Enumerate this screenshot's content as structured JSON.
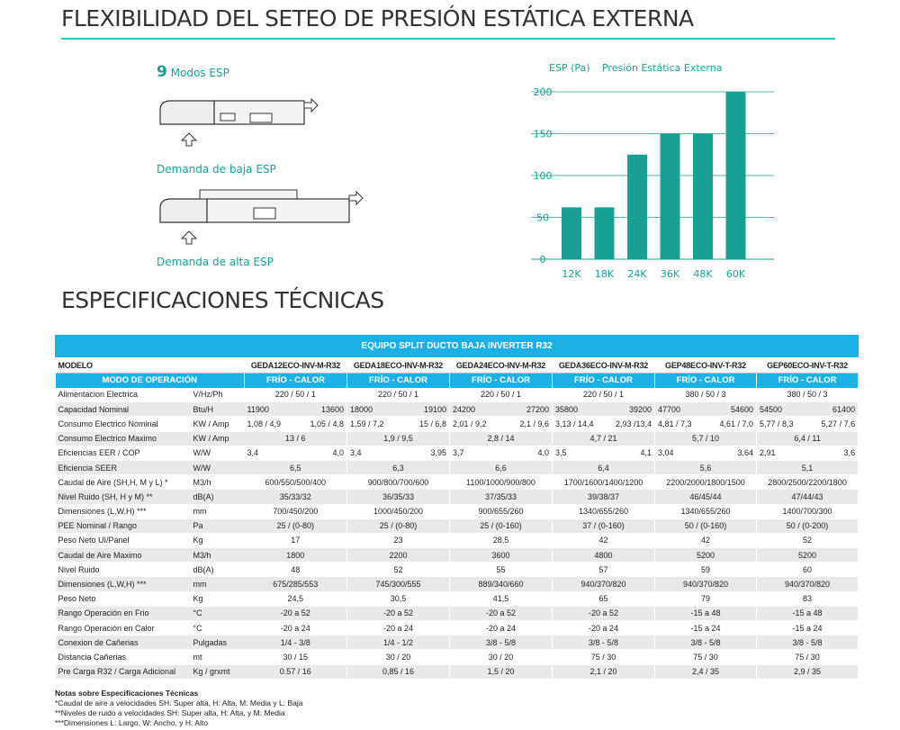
{
  "flex_title": "FLEXIBILIDAD DEL SETEO DE PRESIÓN ESTÁTICA EXTERNA",
  "modes": {
    "number": "9",
    "label": "Modos ESP"
  },
  "low_caption": "Demanda de baja ESP",
  "high_caption": "Demanda de alta ESP",
  "colors": {
    "teal": "#17a195",
    "blue": "#1bb0e6",
    "rule": "#2ec4d4",
    "row_alt": "#e9e9e9"
  },
  "chart_data": {
    "type": "bar",
    "ylabel": "ESP (Pa)",
    "title": "Presión Estática Externa",
    "categories": [
      "12K",
      "18K",
      "24K",
      "36K",
      "48K",
      "60K"
    ],
    "values": [
      62,
      62,
      125,
      150,
      150,
      200
    ],
    "yticks": [
      0,
      50,
      100,
      150,
      200
    ],
    "ylim": [
      0,
      200
    ],
    "grid": true
  },
  "spec_title": "ESPECIFICACIONES TÉCNICAS",
  "table": {
    "banner": "EQUIPO SPLIT DUCTO BAJA INVERTER R32",
    "model_label": "MODELO",
    "models": [
      "GEDA12ECO-INV-M-R32",
      "GEDA18ECO-INV-M-R32",
      "GEDA24ECO-INV-M-R32",
      "GEDA36ECO-INV-M-R32",
      "GEP48ECO-INV-T-R32",
      "GEP60ECO-INV-T-R32"
    ],
    "mode_label": "MODO DE OPERACIÓN",
    "mode_value": "FRÍO  -  CALOR",
    "rows": [
      {
        "label": "Alimentacion Electrica",
        "unit": "V/Hz/Ph",
        "vals": [
          "220 / 50 / 1",
          "220 / 50 / 1",
          "220 / 50 / 1",
          "220 / 50 / 1",
          "380 / 50 / 3",
          "380 / 50 / 3"
        ]
      },
      {
        "label": "Capacidad Nominal",
        "unit": "Btu/H",
        "vals": [
          [
            "11900",
            "13600"
          ],
          [
            "18000",
            "19100"
          ],
          [
            "24200",
            "27200"
          ],
          [
            "35800",
            "39200"
          ],
          [
            "47700",
            "54600"
          ],
          [
            "54500",
            "61400"
          ]
        ]
      },
      {
        "label": "Consumo Electrico Nominal",
        "unit": "KW / Amp",
        "vals": [
          [
            "1,08 / 4,9",
            "1,05 / 4,8"
          ],
          [
            "1,59 / 7,2",
            "15 / 6,8"
          ],
          [
            "2,01 / 9,2",
            "2,1 / 9,6"
          ],
          [
            "3,13 / 14,4",
            "2,93 /13,4"
          ],
          [
            "4,81 / 7,3",
            "4,61 / 7,0"
          ],
          [
            "5,77 / 8,3",
            "5,27 / 7,6"
          ]
        ]
      },
      {
        "label": "Consumo Electrico Maximo",
        "unit": "KW / Amp",
        "vals": [
          "13 / 6",
          "1,9 / 9,5",
          "2,8 / 14",
          "4,7 / 21",
          "5,7 / 10",
          "6,4 / 11"
        ]
      },
      {
        "label": "Eficiencias EER / COP",
        "unit": "W/W",
        "vals": [
          [
            "3,4",
            "4,0"
          ],
          [
            "3,4",
            "3,95"
          ],
          [
            "3,7",
            "4,0"
          ],
          [
            "3,5",
            "4,1"
          ],
          [
            "3,04",
            "3,64"
          ],
          [
            "2,91",
            "3,6"
          ]
        ]
      },
      {
        "label": "Eficiencia SEER",
        "unit": "W/W",
        "vals": [
          "6,5",
          "6,3",
          "6,6",
          "6,4",
          "5,6",
          "5,1"
        ]
      },
      {
        "label": "Caudal de Aire (SH,H, M y L) *",
        "unit": "M3/h",
        "vals": [
          "600/550/500/400",
          "900/800/700/600",
          "1100/1000/900/800",
          "1700/1600/1400/1200",
          "2200/2000/1800/1500",
          "2800/2500/2200/1800"
        ]
      },
      {
        "label": "Nivel Ruido (SH, H y M) **",
        "unit": "dB(A)",
        "vals": [
          "35/33/32",
          "36/35/33",
          "37/35/33",
          "39/38/37",
          "46/45/44",
          "47/44/43"
        ]
      },
      {
        "label": "Dimensiones (L,W,H) ***",
        "unit": "mm",
        "vals": [
          "700/450/200",
          "1000/450/200",
          "900/655/260",
          "1340/655/260",
          "1340/655/260",
          "1400/700/300"
        ]
      },
      {
        "label": "PEE Nominal / Rango",
        "unit": "Pa",
        "vals": [
          "25 / (0-80)",
          "25 / (0-80)",
          "25 / (0-160)",
          "37 / (0-160)",
          "50 / (0-160)",
          "50 / (0-200)"
        ]
      },
      {
        "label": "Peso Neto UI/Panel",
        "unit": "Kg",
        "vals": [
          "17",
          "23",
          "28,5",
          "42",
          "42",
          "52"
        ]
      },
      {
        "label": "Caudal de Aire Maximo",
        "unit": "M3/h",
        "vals": [
          "1800",
          "2200",
          "3600",
          "4800",
          "5200",
          "5200"
        ]
      },
      {
        "label": "Nivel Ruido",
        "unit": "dB(A)",
        "vals": [
          "48",
          "52",
          "55",
          "57",
          "59",
          "60"
        ]
      },
      {
        "label": "Dimensiones (L,W,H) ***",
        "unit": "mm",
        "vals": [
          "675/285/553",
          "745/300/555",
          "889/340/660",
          "940/370/820",
          "940/370/820",
          "940/370/820"
        ]
      },
      {
        "label": "Peso Neto",
        "unit": "Kg",
        "vals": [
          "24,5",
          "30,5",
          "41,5",
          "65",
          "79",
          "83"
        ]
      },
      {
        "label": "Rango Operación en Frio",
        "unit": "°C",
        "vals": [
          "-20 a 52",
          "-20 a 52",
          "-20 a 52",
          "-20 a 52",
          "-15 a 48",
          "-15 a 48"
        ]
      },
      {
        "label": "Rango Operación en Calor",
        "unit": "°C",
        "vals": [
          "-20 a 24",
          "-20 a 24",
          "-20 a 24",
          "-20 a 24",
          "-15 a 24",
          "-15 a 24"
        ]
      },
      {
        "label": "Conexion de Cañerias",
        "unit": "Pulgadas",
        "vals": [
          "1/4  -  3/8",
          "1/4  -  1/2",
          "3/8  -  5/8",
          "3/8  -  5/8",
          "3/8  -  5/8",
          "3/8  -  5/8"
        ]
      },
      {
        "label": "Distancia Cañerias",
        "unit": "mt",
        "vals": [
          "30 / 15",
          "30 / 20",
          "30 / 20",
          "75 / 30",
          "75 / 30",
          "75 / 30"
        ]
      },
      {
        "label": "Pre Carga R32 / Carga Adicional",
        "unit": "Kg / grxmt",
        "vals": [
          "0.57 / 16",
          "0,85 / 16",
          "1,5 / 20",
          "2,1 / 20",
          "2,4 / 35",
          "2,9 / 35"
        ]
      }
    ]
  },
  "notes": {
    "heading": "Notas sobre Especificaciones Técnicas",
    "lines": [
      "*Caudal de aire a velocidades SH: Super alta, H: Alta, M: Media y L: Baja",
      "**Niveles de ruido a velocidades SH: Super alta, H: Alta, y M: Media",
      "***Dimensiones L: Largo, W: Ancho, y H: Alto"
    ]
  }
}
